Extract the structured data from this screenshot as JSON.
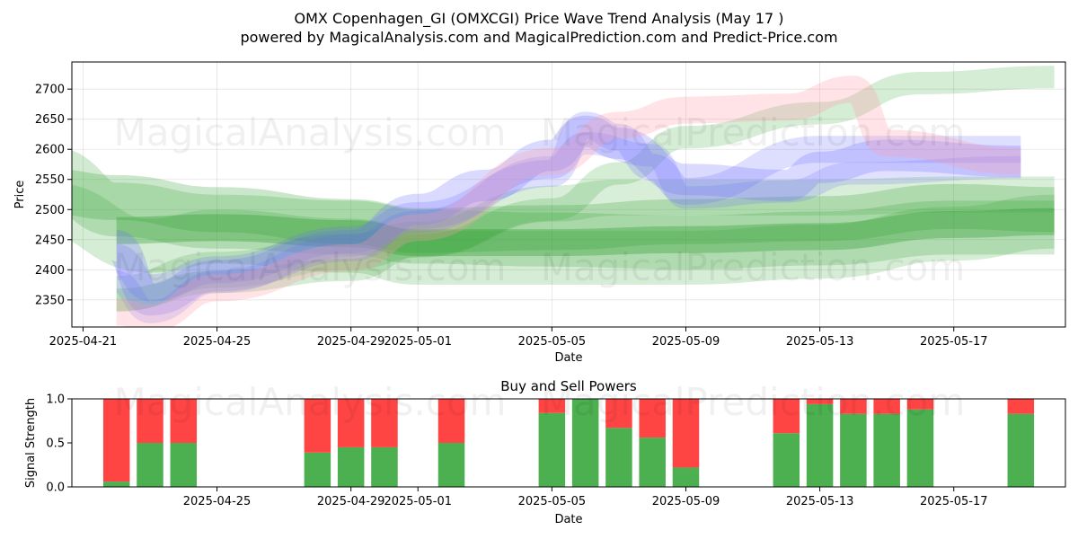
{
  "title_line1": "OMX Copenhagen_GI (OMXCGI) Price Wave Trend Analysis (May 17 )",
  "title_line2": "powered by MagicalAnalysis.com and MagicalPrediction.com and Predict-Price.com",
  "watermarks": {
    "top_left": "MagicalAnalysis.com",
    "top_right": "MagicalPrediction.com",
    "bottom_left": "MagicalAnalysis.com",
    "bottom_right": "MagicalPrediction.com",
    "signal_left": "MagicalAnalysis.com",
    "signal_right": "MagicalPrediction.com"
  },
  "colors": {
    "buy": "#4caf50",
    "sell": "#ff4444",
    "green_band": "#2e9e2e",
    "blue_band": "#6a6aff",
    "pink_band": "#ff9aa8"
  },
  "chart_data": [
    {
      "type": "area",
      "xlabel": "Date",
      "ylabel": "Price",
      "ylim": [
        2305,
        2745
      ],
      "xlim": [
        "2025-04-20T16:00",
        "2025-05-20T08:00"
      ],
      "xtick_labels": [
        "2025-04-21",
        "2025-04-25",
        "2025-04-29",
        "2025-05-01",
        "2025-05-05",
        "2025-05-09",
        "2025-05-13",
        "2025-05-17"
      ],
      "ytick_labels": [
        "2350",
        "2400",
        "2450",
        "2500",
        "2550",
        "2600",
        "2650",
        "2700"
      ],
      "grid": true,
      "series": [
        {
          "color": "green",
          "width": 60,
          "opacity": 0.22,
          "points": [
            [
              "2025-04-20",
              2560
            ],
            [
              "2025-04-22",
              2500
            ],
            [
              "2025-04-25",
              2480
            ],
            [
              "2025-04-29",
              2470
            ],
            [
              "2025-05-01",
              2455
            ],
            [
              "2025-05-05",
              2450
            ],
            [
              "2025-05-09",
              2445
            ],
            [
              "2025-05-13",
              2452
            ],
            [
              "2025-05-17",
              2470
            ],
            [
              "2025-05-20",
              2470
            ]
          ]
        },
        {
          "color": "green",
          "width": 50,
          "opacity": 0.25,
          "points": [
            [
              "2025-04-20",
              2530
            ],
            [
              "2025-04-22",
              2520
            ],
            [
              "2025-04-25",
              2500
            ],
            [
              "2025-04-29",
              2480
            ],
            [
              "2025-05-01",
              2465
            ],
            [
              "2025-05-05",
              2470
            ],
            [
              "2025-05-09",
              2480
            ],
            [
              "2025-05-13",
              2485
            ],
            [
              "2025-05-17",
              2505
            ],
            [
              "2025-05-20",
              2500
            ]
          ]
        },
        {
          "color": "green",
          "width": 60,
          "opacity": 0.2,
          "points": [
            [
              "2025-04-20",
              2500
            ],
            [
              "2025-04-23",
              2440
            ],
            [
              "2025-04-25",
              2455
            ],
            [
              "2025-04-29",
              2440
            ],
            [
              "2025-05-01",
              2420
            ],
            [
              "2025-05-05",
              2420
            ],
            [
              "2025-05-09",
              2420
            ],
            [
              "2025-05-13",
              2430
            ],
            [
              "2025-05-17",
              2460
            ],
            [
              "2025-05-20",
              2480
            ]
          ]
        },
        {
          "color": "green",
          "width": 30,
          "opacity": 0.35,
          "points": [
            [
              "2025-04-22",
              2465
            ],
            [
              "2025-04-25",
              2470
            ],
            [
              "2025-04-29",
              2460
            ],
            [
              "2025-05-01",
              2445
            ],
            [
              "2025-05-05",
              2445
            ],
            [
              "2025-05-09",
              2450
            ],
            [
              "2025-05-13",
              2455
            ],
            [
              "2025-05-17",
              2475
            ],
            [
              "2025-05-20",
              2480
            ]
          ]
        },
        {
          "color": "green",
          "width": 25,
          "opacity": 0.2,
          "points": [
            [
              "2025-04-22",
              2350
            ],
            [
              "2025-04-25",
              2380
            ],
            [
              "2025-04-29",
              2400
            ],
            [
              "2025-05-01",
              2440
            ],
            [
              "2025-05-05",
              2500
            ],
            [
              "2025-05-07",
              2560
            ],
            [
              "2025-05-09",
              2620
            ],
            [
              "2025-05-13",
              2660
            ],
            [
              "2025-05-16",
              2710
            ],
            [
              "2025-05-20",
              2720
            ]
          ]
        },
        {
          "color": "green",
          "width": 40,
          "opacity": 0.18,
          "points": [
            [
              "2025-04-22",
              2360
            ],
            [
              "2025-04-25",
              2400
            ],
            [
              "2025-04-29",
              2430
            ],
            [
              "2025-05-01",
              2450
            ],
            [
              "2025-05-05",
              2510
            ],
            [
              "2025-05-07",
              2520
            ],
            [
              "2025-05-09",
              2520
            ],
            [
              "2025-05-13",
              2520
            ],
            [
              "2025-05-17",
              2525
            ],
            [
              "2025-05-20",
              2525
            ]
          ]
        },
        {
          "color": "blue",
          "width": 35,
          "opacity": 0.25,
          "points": [
            [
              "2025-04-22",
              2440
            ],
            [
              "2025-04-23",
              2350
            ],
            [
              "2025-04-25",
              2390
            ],
            [
              "2025-04-29",
              2440
            ],
            [
              "2025-05-01",
              2500
            ],
            [
              "2025-05-03",
              2540
            ],
            [
              "2025-05-05",
              2590
            ],
            [
              "2025-05-06",
              2630
            ],
            [
              "2025-05-07",
              2610
            ],
            [
              "2025-05-09",
              2550
            ],
            [
              "2025-05-12",
              2540
            ],
            [
              "2025-05-13",
              2570
            ],
            [
              "2025-05-15",
              2590
            ],
            [
              "2025-05-19",
              2580
            ]
          ]
        },
        {
          "color": "blue",
          "width": 30,
          "opacity": 0.22,
          "points": [
            [
              "2025-04-22",
              2420
            ],
            [
              "2025-04-23",
              2370
            ],
            [
              "2025-04-25",
              2400
            ],
            [
              "2025-04-29",
              2450
            ],
            [
              "2025-05-01",
              2490
            ],
            [
              "2025-05-05",
              2560
            ],
            [
              "2025-05-06",
              2640
            ],
            [
              "2025-05-07",
              2620
            ],
            [
              "2025-05-08",
              2570
            ],
            [
              "2025-05-09",
              2530
            ],
            [
              "2025-05-13",
              2600
            ],
            [
              "2025-05-15",
              2600
            ],
            [
              "2025-05-19",
              2600
            ]
          ]
        },
        {
          "color": "blue",
          "width": 25,
          "opacity": 0.2,
          "points": [
            [
              "2025-04-22",
              2380
            ],
            [
              "2025-04-23",
              2330
            ],
            [
              "2025-04-25",
              2380
            ],
            [
              "2025-04-29",
              2440
            ],
            [
              "2025-05-01",
              2480
            ],
            [
              "2025-05-05",
              2570
            ],
            [
              "2025-05-06",
              2610
            ],
            [
              "2025-05-08",
              2590
            ],
            [
              "2025-05-09",
              2520
            ],
            [
              "2025-05-12",
              2530
            ],
            [
              "2025-05-14",
              2560
            ],
            [
              "2025-05-19",
              2570
            ]
          ]
        },
        {
          "color": "pink",
          "width": 30,
          "opacity": 0.28,
          "points": [
            [
              "2025-04-22",
              2330
            ],
            [
              "2025-04-23",
              2320
            ],
            [
              "2025-04-25",
              2370
            ],
            [
              "2025-04-29",
              2420
            ],
            [
              "2025-05-01",
              2470
            ],
            [
              "2025-05-05",
              2580
            ],
            [
              "2025-05-07",
              2640
            ],
            [
              "2025-05-09",
              2665
            ],
            [
              "2025-05-12",
              2670
            ],
            [
              "2025-05-14",
              2700
            ],
            [
              "2025-05-15",
              2610
            ],
            [
              "2025-05-19",
              2580
            ]
          ]
        }
      ]
    },
    {
      "type": "bar",
      "title": "Buy and Sell Powers",
      "xlabel": "Date",
      "ylabel": "Signal Strength",
      "ylim": [
        0,
        1
      ],
      "ytick_labels": [
        "0.0",
        "0.5",
        "1.0"
      ],
      "xtick_labels": [
        "2025-04-25",
        "2025-04-29",
        "2025-05-01",
        "2025-05-05",
        "2025-05-09",
        "2025-05-13",
        "2025-05-17"
      ],
      "categories": [
        "2025-04-22",
        "2025-04-23",
        "2025-04-24",
        "2025-04-28",
        "2025-04-29",
        "2025-04-30",
        "2025-05-02",
        "2025-05-05",
        "2025-05-06",
        "2025-05-07",
        "2025-05-08",
        "2025-05-09",
        "2025-05-12",
        "2025-05-13",
        "2025-05-14",
        "2025-05-15",
        "2025-05-16",
        "2025-05-19"
      ],
      "series": [
        {
          "name": "buy",
          "values": [
            0.06,
            0.5,
            0.5,
            0.39,
            0.45,
            0.45,
            0.5,
            0.84,
            1.0,
            0.67,
            0.56,
            0.22,
            0.61,
            0.94,
            0.83,
            0.83,
            0.88,
            0.83
          ]
        },
        {
          "name": "sell",
          "values": [
            0.94,
            0.5,
            0.5,
            0.61,
            0.55,
            0.55,
            0.5,
            0.16,
            0.0,
            0.33,
            0.44,
            0.78,
            0.39,
            0.06,
            0.17,
            0.17,
            0.12,
            0.17
          ]
        }
      ]
    }
  ]
}
